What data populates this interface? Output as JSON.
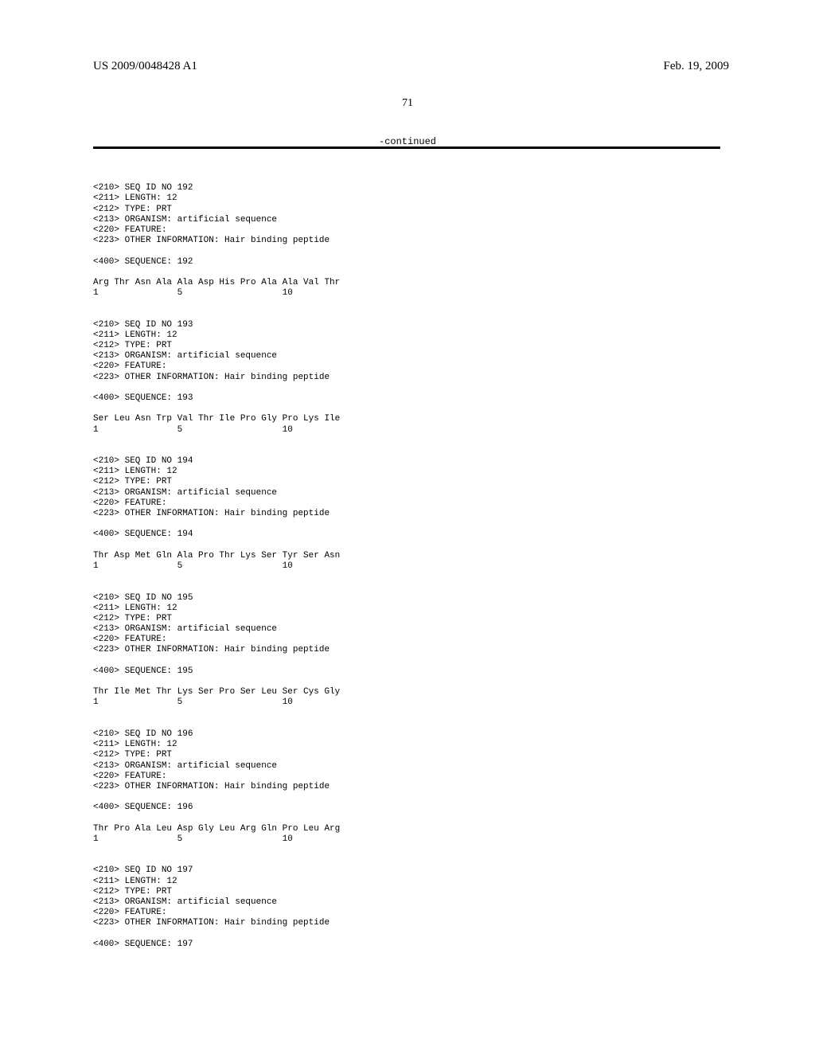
{
  "header": {
    "pub_number": "US 2009/0048428 A1",
    "pub_date": "Feb. 19, 2009"
  },
  "page_number": "71",
  "continued_label": "-continued",
  "sequences": [
    {
      "seq_id": "<210> SEQ ID NO 192",
      "length": "<211> LENGTH: 12",
      "type": "<212> TYPE: PRT",
      "organism": "<213> ORGANISM: artificial sequence",
      "feature": "<220> FEATURE:",
      "other_info": "<223> OTHER INFORMATION: Hair binding peptide",
      "seq_label": "<400> SEQUENCE: 192",
      "residues": "Arg Thr Asn Ala Ala Asp His Pro Ala Ala Val Thr",
      "positions": "1               5                   10"
    },
    {
      "seq_id": "<210> SEQ ID NO 193",
      "length": "<211> LENGTH: 12",
      "type": "<212> TYPE: PRT",
      "organism": "<213> ORGANISM: artificial sequence",
      "feature": "<220> FEATURE:",
      "other_info": "<223> OTHER INFORMATION: Hair binding peptide",
      "seq_label": "<400> SEQUENCE: 193",
      "residues": "Ser Leu Asn Trp Val Thr Ile Pro Gly Pro Lys Ile",
      "positions": "1               5                   10"
    },
    {
      "seq_id": "<210> SEQ ID NO 194",
      "length": "<211> LENGTH: 12",
      "type": "<212> TYPE: PRT",
      "organism": "<213> ORGANISM: artificial sequence",
      "feature": "<220> FEATURE:",
      "other_info": "<223> OTHER INFORMATION: Hair binding peptide",
      "seq_label": "<400> SEQUENCE: 194",
      "residues": "Thr Asp Met Gln Ala Pro Thr Lys Ser Tyr Ser Asn",
      "positions": "1               5                   10"
    },
    {
      "seq_id": "<210> SEQ ID NO 195",
      "length": "<211> LENGTH: 12",
      "type": "<212> TYPE: PRT",
      "organism": "<213> ORGANISM: artificial sequence",
      "feature": "<220> FEATURE:",
      "other_info": "<223> OTHER INFORMATION: Hair binding peptide",
      "seq_label": "<400> SEQUENCE: 195",
      "residues": "Thr Ile Met Thr Lys Ser Pro Ser Leu Ser Cys Gly",
      "positions": "1               5                   10"
    },
    {
      "seq_id": "<210> SEQ ID NO 196",
      "length": "<211> LENGTH: 12",
      "type": "<212> TYPE: PRT",
      "organism": "<213> ORGANISM: artificial sequence",
      "feature": "<220> FEATURE:",
      "other_info": "<223> OTHER INFORMATION: Hair binding peptide",
      "seq_label": "<400> SEQUENCE: 196",
      "residues": "Thr Pro Ala Leu Asp Gly Leu Arg Gln Pro Leu Arg",
      "positions": "1               5                   10"
    },
    {
      "seq_id": "<210> SEQ ID NO 197",
      "length": "<211> LENGTH: 12",
      "type": "<212> TYPE: PRT",
      "organism": "<213> ORGANISM: artificial sequence",
      "feature": "<220> FEATURE:",
      "other_info": "<223> OTHER INFORMATION: Hair binding peptide",
      "seq_label": "<400> SEQUENCE: 197",
      "residues": "",
      "positions": ""
    }
  ]
}
